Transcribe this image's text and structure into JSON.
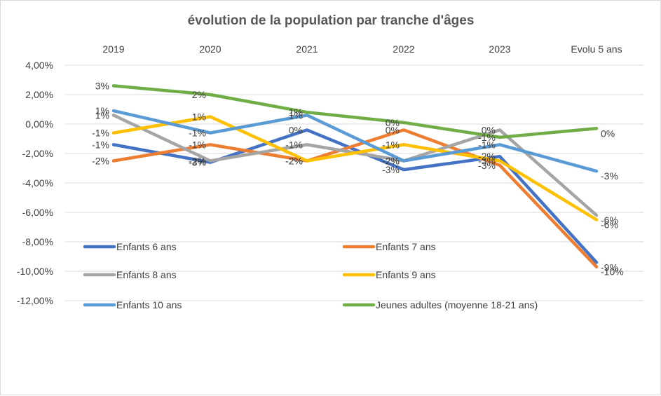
{
  "chart_data": {
    "type": "line",
    "title": "évolution de la population par tranche d'âges",
    "categories": [
      "2019",
      "2020",
      "2021",
      "2022",
      "2023",
      "Evolu 5 ans"
    ],
    "ylim": [
      -0.12,
      0.04
    ],
    "y_ticks": [
      0.04,
      0.02,
      0.0,
      -0.02,
      -0.04,
      -0.06,
      -0.08,
      -0.1,
      -0.12
    ],
    "y_tick_labels": [
      "4,00%",
      "2,00%",
      "0,00%",
      "-2,00%",
      "-4,00%",
      "-6,00%",
      "-8,00%",
      "-10,00%",
      "-12,00%"
    ],
    "grid": true,
    "legend_position": "bottom-inside",
    "series": [
      {
        "name": "Enfants 6 ans",
        "color": "#4472C4",
        "values": [
          -0.014,
          -0.026,
          -0.004,
          -0.031,
          -0.022,
          -0.094
        ],
        "labels": [
          "-1%",
          "-3%",
          "0%",
          "-3%",
          "-2%",
          "-9%"
        ]
      },
      {
        "name": "Enfants 7 ans",
        "color": "#ED7D31",
        "values": [
          -0.025,
          -0.014,
          -0.025,
          -0.004,
          -0.028,
          -0.097
        ],
        "labels": [
          "-2%",
          "-1%",
          "-2%",
          "0%",
          "-3%",
          "-10%"
        ]
      },
      {
        "name": "Enfants 8 ans",
        "color": "#A5A5A5",
        "values": [
          0.006,
          -0.025,
          -0.014,
          -0.025,
          -0.004,
          -0.062
        ],
        "labels": [
          "1%",
          "-2%",
          "-1%",
          "-2%",
          "0%",
          "-6%"
        ]
      },
      {
        "name": "Enfants 9 ans",
        "color": "#FFC000",
        "values": [
          -0.006,
          0.005,
          -0.025,
          -0.014,
          -0.025,
          -0.065
        ],
        "labels": [
          "-1%",
          "1%",
          "-2%",
          "-1%",
          "-3%",
          "-6%"
        ]
      },
      {
        "name": "Enfants 10 ans",
        "color": "#5B9BD5",
        "values": [
          0.009,
          -0.006,
          0.006,
          -0.025,
          -0.014,
          -0.032
        ],
        "labels": [
          "1%",
          "-1%",
          "1%",
          "-2%",
          "-1%",
          "-3%"
        ]
      },
      {
        "name": "Jeunes adultes (moyenne 18-21 ans)",
        "color": "#70AD47",
        "values": [
          0.026,
          0.02,
          0.008,
          0.001,
          -0.009,
          -0.003
        ],
        "labels": [
          "3%",
          "2%",
          "1%",
          "0%",
          "-1%",
          "0%"
        ]
      }
    ]
  }
}
